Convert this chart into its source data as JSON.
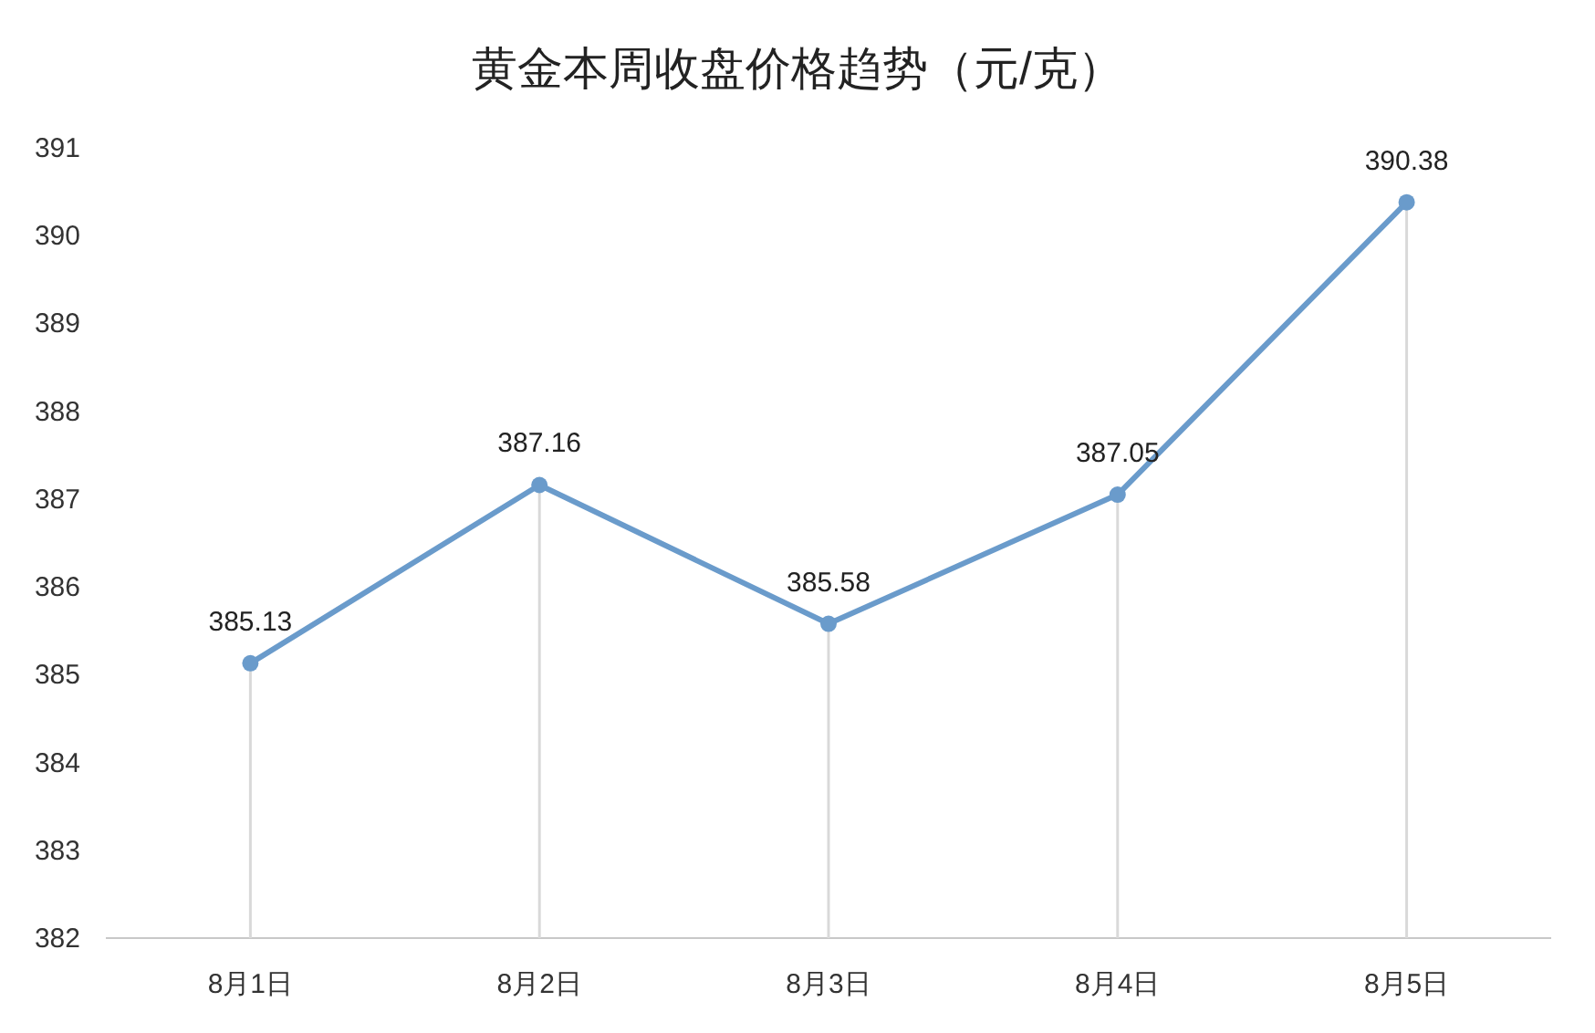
{
  "chart_data": {
    "type": "line",
    "title": "黄金本周收盘价格趋势（元/克）",
    "categories": [
      "8月1日",
      "8月2日",
      "8月3日",
      "8月4日",
      "8月5日"
    ],
    "series": [
      {
        "color": "#6a9bcb",
        "values": [
          385.13,
          387.16,
          385.58,
          387.05,
          390.38
        ]
      }
    ],
    "ylim": [
      382,
      391
    ],
    "yticks": [
      382,
      383,
      384,
      385,
      386,
      387,
      388,
      389,
      390,
      391
    ],
    "data_labels": true,
    "marker": "circle",
    "line_style": "solid"
  }
}
